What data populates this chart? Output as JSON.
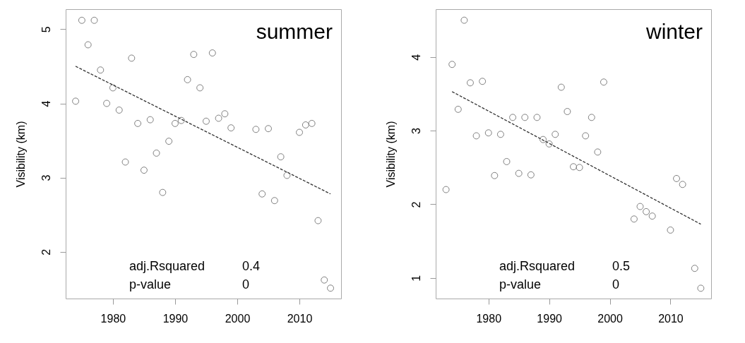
{
  "chart_data": [
    {
      "type": "scatter",
      "title": "summer",
      "ylabel": "Visibility (km)",
      "xlim": [
        1972.4,
        2016.7
      ],
      "ylim": [
        1.37,
        5.27
      ],
      "xticks": [
        1980,
        1990,
        2000,
        2010
      ],
      "yticks": [
        2,
        3,
        4,
        5
      ],
      "grid": false,
      "annotations": [
        "adj.Rsquared",
        "0.4",
        "p-value",
        "0"
      ],
      "series": [
        {
          "color": "#7f7f7f",
          "marker": "circle",
          "x": [
            1974,
            1975,
            1976,
            1977,
            1978,
            1979,
            1980,
            1981,
            1982,
            1983,
            1984,
            1985,
            1986,
            1987,
            1988,
            1989,
            1990,
            1991,
            1992,
            1993,
            1994,
            1995,
            1996,
            1997,
            1998,
            1999,
            2003,
            2004,
            2005,
            2006,
            2007,
            2008,
            2010,
            2011,
            2012,
            2013,
            2014,
            2015
          ],
          "values": [
            4.03,
            5.12,
            4.79,
            5.12,
            4.45,
            4.0,
            4.21,
            3.91,
            3.21,
            4.61,
            3.73,
            3.1,
            3.78,
            3.33,
            2.8,
            3.49,
            3.73,
            3.77,
            4.32,
            4.66,
            4.21,
            3.76,
            4.68,
            3.8,
            3.86,
            3.67,
            3.65,
            2.78,
            3.66,
            2.69,
            3.28,
            3.03,
            3.61,
            3.71,
            3.73,
            2.42,
            1.62,
            1.51
          ]
        },
        {
          "type": "line",
          "color": "#333333",
          "line_style": "dashed",
          "marker": "none",
          "x": [
            1974,
            2015
          ],
          "values": [
            4.5,
            2.78
          ]
        }
      ]
    },
    {
      "type": "scatter",
      "title": "winter",
      "ylabel": "Visibility (km)",
      "xlim": [
        1971.3,
        2016.7
      ],
      "ylim": [
        0.72,
        4.65
      ],
      "xticks": [
        1980,
        1990,
        2000,
        2010
      ],
      "yticks": [
        1,
        2,
        3,
        4
      ],
      "grid": false,
      "annotations": [
        "adj.Rsquared",
        "0.5",
        "p-value",
        "0"
      ],
      "series": [
        {
          "color": "#7f7f7f",
          "marker": "circle",
          "x": [
            1973,
            1974,
            1975,
            1976,
            1977,
            1978,
            1979,
            1980,
            1981,
            1982,
            1983,
            1984,
            1985,
            1986,
            1987,
            1988,
            1989,
            1990,
            1991,
            1992,
            1993,
            1994,
            1995,
            1996,
            1997,
            1998,
            1999,
            2004,
            2005,
            2006,
            2007,
            2010,
            2011,
            2012,
            2014,
            2015
          ],
          "values": [
            2.2,
            3.9,
            3.29,
            4.5,
            3.65,
            2.93,
            3.67,
            2.97,
            2.39,
            2.95,
            2.58,
            3.18,
            2.42,
            3.18,
            2.4,
            3.18,
            2.88,
            2.82,
            2.95,
            3.59,
            3.26,
            2.51,
            2.5,
            2.93,
            3.18,
            2.71,
            3.66,
            1.8,
            1.97,
            1.9,
            1.84,
            1.65,
            2.35,
            2.27,
            1.13,
            0.86
          ]
        },
        {
          "type": "line",
          "color": "#333333",
          "line_style": "dashed",
          "marker": "none",
          "x": [
            1974,
            2015
          ],
          "values": [
            3.53,
            1.73
          ]
        }
      ]
    }
  ]
}
